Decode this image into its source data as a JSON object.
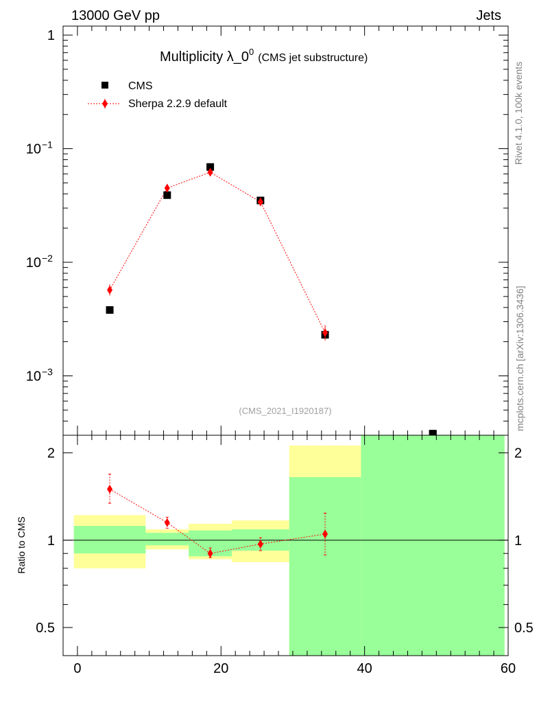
{
  "header": {
    "energy_label": "13000 GeV pp",
    "process_label": "Jets"
  },
  "side_labels": {
    "rivet": "Rivet 4.1.0,  100k events",
    "source": "mcplots.cern.ch [arXiv:1306.3436]"
  },
  "chart_data": {
    "type": "scatter",
    "title_main": "Multiplicity λ_0",
    "title_sup": "0",
    "title_sub": "(CMS jet substructure)",
    "analysis_id": "(CMS_2021_I1920187)",
    "legend_position": "top-left",
    "colors": {
      "data": "#000000",
      "mc": "#ff0000",
      "band_inner": "#99ff99",
      "band_outer": "#ffff99"
    },
    "x_range": [
      -2,
      60
    ],
    "x_ticks": [
      0,
      20,
      40,
      60
    ],
    "main_panel": {
      "y_scale": "log",
      "y_range": [
        0.0003,
        1.2
      ],
      "y_ticks": [
        {
          "value": 1,
          "label": "1"
        },
        {
          "value": 0.1,
          "base": "10",
          "exp": "−1"
        },
        {
          "value": 0.01,
          "base": "10",
          "exp": "−2"
        },
        {
          "value": 0.001,
          "base": "10",
          "exp": "−3"
        }
      ],
      "series": [
        {
          "name": "CMS",
          "marker": "square",
          "points": [
            {
              "x": 4.5,
              "y": 0.0038
            },
            {
              "x": 12.5,
              "y": 0.039
            },
            {
              "x": 18.5,
              "y": 0.069
            },
            {
              "x": 25.5,
              "y": 0.035
            },
            {
              "x": 34.5,
              "y": 0.0023
            },
            {
              "x": 49.5,
              "y": 0.00031
            }
          ]
        },
        {
          "name": "Sherpa 2.2.9 default",
          "marker": "diamond",
          "line": "dotted",
          "points": [
            {
              "x": 4.5,
              "y": 0.0057,
              "ylo": 0.0051,
              "yhi": 0.0064
            },
            {
              "x": 12.5,
              "y": 0.045,
              "ylo": 0.043,
              "yhi": 0.047
            },
            {
              "x": 18.5,
              "y": 0.062,
              "ylo": 0.059,
              "yhi": 0.065
            },
            {
              "x": 25.5,
              "y": 0.034,
              "ylo": 0.032,
              "yhi": 0.036
            },
            {
              "x": 34.5,
              "y": 0.0024,
              "ylo": 0.00205,
              "yhi": 0.0028
            }
          ]
        }
      ]
    },
    "ratio_panel": {
      "ylabel": "Ratio to CMS",
      "y_scale": "log",
      "y_range": [
        0.4,
        2.3
      ],
      "y_ticks": [
        {
          "value": 0.5,
          "label": "0.5"
        },
        {
          "value": 1,
          "label": "1"
        },
        {
          "value": 2,
          "label": "2"
        }
      ],
      "reference_line": 1,
      "bands": [
        {
          "xlo": -0.5,
          "xhi": 9.5,
          "inner": [
            0.9,
            1.12
          ],
          "outer": [
            0.8,
            1.22
          ]
        },
        {
          "xlo": 9.5,
          "xhi": 15.5,
          "inner": [
            0.96,
            1.06
          ],
          "outer": [
            0.93,
            1.09
          ]
        },
        {
          "xlo": 15.5,
          "xhi": 21.5,
          "inner": [
            0.88,
            1.08
          ],
          "outer": [
            0.86,
            1.14
          ]
        },
        {
          "xlo": 21.5,
          "xhi": 29.5,
          "inner": [
            0.92,
            1.09
          ],
          "outer": [
            0.84,
            1.17
          ]
        },
        {
          "xlo": 29.5,
          "xhi": 39.5,
          "inner": [
            0.38,
            1.65
          ],
          "outer": [
            0.35,
            2.12
          ]
        },
        {
          "xlo": 39.5,
          "xhi": 59.5,
          "inner": [
            0.35,
            2.3
          ],
          "outer": [
            0.35,
            2.3
          ]
        }
      ],
      "mc_ratio": {
        "name": "Sherpa 2.2.9 default",
        "points": [
          {
            "x": 4.5,
            "y": 1.5,
            "ylo": 1.34,
            "yhi": 1.69
          },
          {
            "x": 12.5,
            "y": 1.15,
            "ylo": 1.1,
            "yhi": 1.2
          },
          {
            "x": 18.5,
            "y": 0.9,
            "ylo": 0.87,
            "yhi": 0.94
          },
          {
            "x": 25.5,
            "y": 0.97,
            "ylo": 0.92,
            "yhi": 1.02
          },
          {
            "x": 34.5,
            "y": 1.05,
            "ylo": 0.89,
            "yhi": 1.24
          }
        ]
      }
    }
  }
}
